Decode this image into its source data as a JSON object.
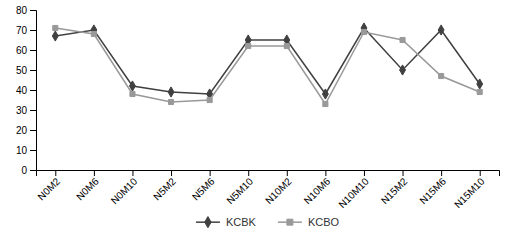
{
  "chart_data": {
    "type": "line",
    "categories": [
      "N0M2",
      "N0M6",
      "N0M10",
      "N5M2",
      "N5M6",
      "N5M10",
      "N10M2",
      "N10M6",
      "N10M10",
      "N15M2",
      "N15M6",
      "N15M10"
    ],
    "series": [
      {
        "name": "KCBK",
        "color": "#404040",
        "marker": "diamond",
        "line_style": "solid",
        "values": [
          67,
          70,
          42,
          39,
          38,
          65,
          65,
          38,
          71,
          50,
          70,
          43
        ]
      },
      {
        "name": "KCBO",
        "color": "#999999",
        "marker": "square",
        "line_style": "solid",
        "values": [
          71,
          68,
          38,
          34,
          35,
          62,
          62,
          33,
          69,
          65,
          47,
          39
        ]
      }
    ],
    "ylim": [
      0,
      80
    ],
    "yticks": [
      0,
      10,
      20,
      30,
      40,
      50,
      60,
      70,
      80
    ],
    "grid": false,
    "legend": "bottom"
  }
}
